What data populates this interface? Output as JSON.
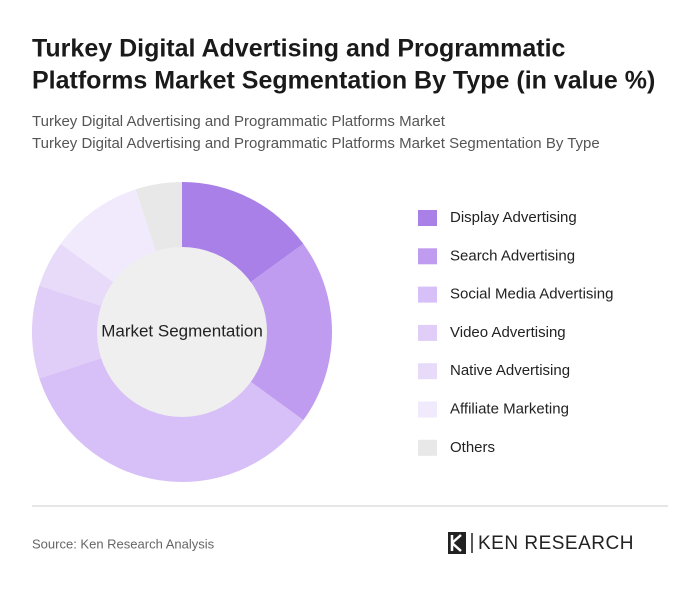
{
  "chart_data": {
    "type": "donut",
    "title": [
      "Turkey Digital Advertising and Programmatic",
      "Platforms Market Segmentation By Type (in value %)"
    ],
    "subtitle": [
      "Turkey Digital Advertising and Programmatic Platforms Market",
      "Turkey Digital Advertising and Programmatic Platforms Market Segmentation By Type"
    ],
    "center_label": "Market Segmentation",
    "categories": [
      "Display Advertising",
      "Search Advertising",
      "Social Media Advertising",
      "Video Advertising",
      "Native Advertising",
      "Affiliate Marketing",
      "Others"
    ],
    "values": [
      15,
      20,
      35,
      10,
      5,
      10,
      5
    ],
    "colors": [
      "#a97fe8",
      "#c09cf0",
      "#d7bff7",
      "#e0cdf8",
      "#e8dbf9",
      "#f1eafc",
      "#e8e8e8"
    ],
    "source": "Source: Ken Research Analysis",
    "brand": "KEN RESEARCH"
  }
}
